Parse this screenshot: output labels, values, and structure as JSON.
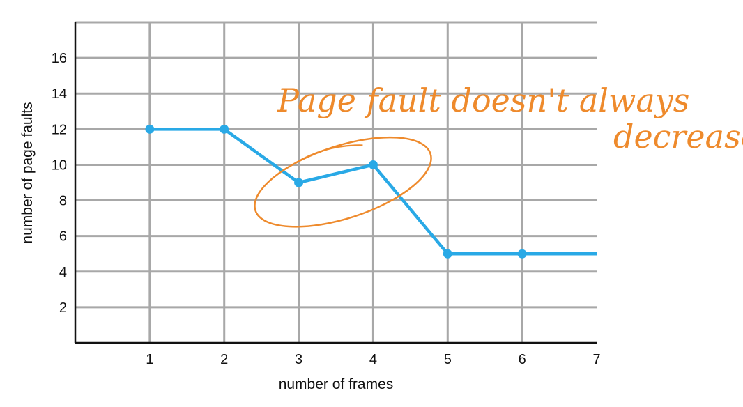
{
  "chart_data": {
    "type": "line",
    "title": "",
    "xlabel": "number of frames",
    "ylabel": "number of page faults",
    "xlim": [
      0,
      7
    ],
    "ylim": [
      0,
      18
    ],
    "x_ticks": [
      "1",
      "2",
      "3",
      "4",
      "5",
      "6",
      "7"
    ],
    "y_ticks": [
      "2",
      "4",
      "6",
      "8",
      "10",
      "12",
      "14",
      "16"
    ],
    "grid": true,
    "legend": "none",
    "series": [
      {
        "x": [
          1,
          2,
          3,
          4,
          5,
          6,
          7
        ],
        "y": [
          12,
          12,
          9,
          10,
          5,
          5,
          5
        ],
        "color": "#29a9e6"
      }
    ],
    "annotations": {
      "line1": "Page fault doesn't always",
      "line2": "decrease",
      "color": "#ee8a2c",
      "circled_points": [
        3,
        4
      ]
    }
  },
  "colors": {
    "grid": "#a8a8a8",
    "axis": "#111111",
    "line": "#29a9e6",
    "annotation": "#ee8a2c"
  }
}
